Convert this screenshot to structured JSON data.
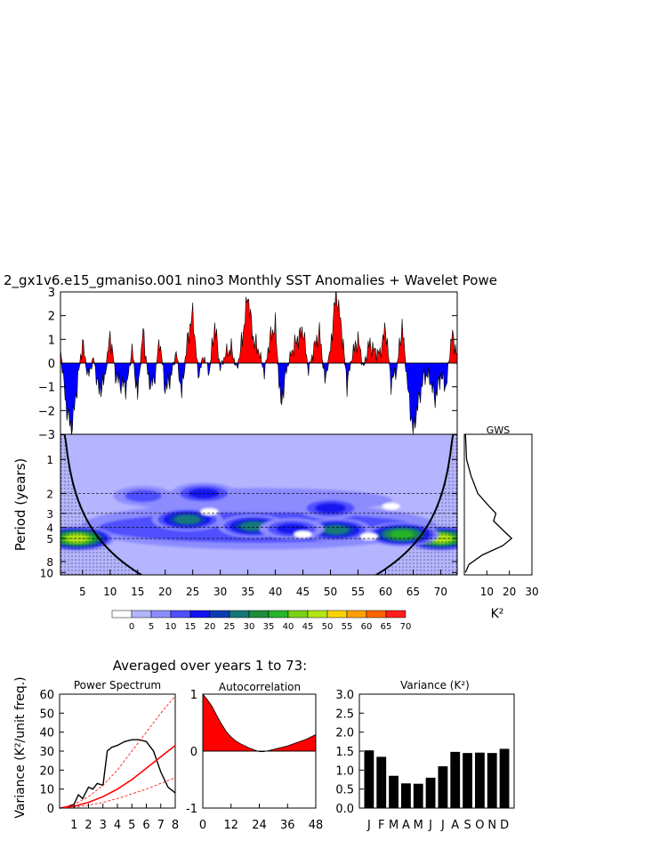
{
  "chart_data": [
    {
      "type": "area",
      "title": "2_gx1v6.e15_gmaniso.001 nino3 Monthly SST Anomalies + Wavelet Powe",
      "xlim": [
        1,
        73
      ],
      "ylim": [
        -3,
        3
      ],
      "yticks": [
        3,
        2,
        1,
        0,
        -1,
        -2,
        -3
      ],
      "ytick_labels": [
        "3",
        "2",
        "1",
        "0",
        "−1",
        "−2",
        "−3"
      ],
      "positive_color": "#ff0000",
      "negative_color": "#0000ff",
      "x": [
        1,
        2,
        3,
        4,
        5,
        6,
        7,
        8,
        9,
        10,
        11,
        12,
        13,
        14,
        15,
        16,
        17,
        18,
        19,
        20,
        21,
        22,
        23,
        24,
        25,
        26,
        27,
        28,
        29,
        30,
        31,
        32,
        33,
        34,
        35,
        36,
        37,
        38,
        39,
        40,
        41,
        42,
        43,
        44,
        45,
        46,
        47,
        48,
        49,
        50,
        51,
        52,
        53,
        54,
        55,
        56,
        57,
        58,
        59,
        60,
        61,
        62,
        63,
        64,
        65,
        66,
        67,
        68,
        69,
        70,
        71,
        72,
        73
      ],
      "values": [
        0.6,
        -1.8,
        -2.8,
        -1.0,
        0.9,
        -0.6,
        0.2,
        -1.2,
        -0.7,
        1.2,
        -0.5,
        -0.9,
        -1.0,
        0.6,
        -1.4,
        1.4,
        -0.8,
        -0.8,
        1.0,
        -1.1,
        -0.6,
        0.5,
        -1.3,
        0.9,
        2.1,
        -0.5,
        0.3,
        -0.4,
        1.6,
        -0.2,
        0.4,
        0.6,
        -0.3,
        1.0,
        2.9,
        1.0,
        0.5,
        -0.4,
        1.0,
        1.6,
        -1.8,
        -0.3,
        0.5,
        1.0,
        1.4,
        -0.3,
        0.6,
        1.3,
        -0.8,
        0.6,
        3.0,
        1.5,
        -0.9,
        0.4,
        1.0,
        -0.2,
        0.8,
        0.5,
        0.4,
        1.5,
        -0.8,
        -0.3,
        1.6,
        -1.0,
        -2.9,
        -1.6,
        -0.5,
        -0.6,
        -1.5,
        -0.5,
        -1.0,
        1.2,
        0.4
      ]
    },
    {
      "type": "heatmap",
      "ylabel": "Period (years)",
      "xticks": [
        5,
        10,
        15,
        20,
        25,
        30,
        35,
        40,
        45,
        50,
        55,
        60,
        65,
        70
      ],
      "yticks": [
        1,
        2,
        3,
        4,
        5,
        8,
        10
      ],
      "xlim": [
        1,
        73
      ],
      "ylim": [
        0.6,
        10.5
      ],
      "y_scale": "log",
      "dashed_periods": [
        2,
        3,
        4,
        5
      ],
      "colorbar_labels": [
        "0",
        "5",
        "10",
        "15",
        "20",
        "25",
        "30",
        "35",
        "40",
        "45",
        "50",
        "55",
        "60",
        "65",
        "70"
      ],
      "colorbar_colors": [
        "#ffffff",
        "#b4b4ff",
        "#8c8cff",
        "#5050ff",
        "#1414f0",
        "#0a3cb4",
        "#147878",
        "#1e8c3c",
        "#28b428",
        "#78d214",
        "#b4e614",
        "#fad200",
        "#ffa000",
        "#ff6400",
        "#ff1e1e"
      ],
      "power_blobs": [
        {
          "t": 4,
          "p": 5.0,
          "level": 10
        },
        {
          "t": 70,
          "p": 5.0,
          "level": 10
        },
        {
          "t": 24,
          "p": 3.4,
          "level": 6
        },
        {
          "t": 36,
          "p": 3.9,
          "level": 6
        },
        {
          "t": 51,
          "p": 4.2,
          "level": 6
        },
        {
          "t": 63,
          "p": 4.6,
          "level": 8
        },
        {
          "t": 27,
          "p": 2.0,
          "level": 4
        },
        {
          "t": 50,
          "p": 2.7,
          "level": 4
        },
        {
          "t": 16,
          "p": 2.1,
          "level": 3
        },
        {
          "t": 43,
          "p": 4.1,
          "level": 4
        }
      ]
    },
    {
      "type": "line",
      "title": "GWS",
      "xlabel": "K²",
      "xticks": [
        10,
        20,
        30
      ],
      "xlim": [
        0,
        30
      ],
      "curve": [
        {
          "period": 0.6,
          "value": 0.5
        },
        {
          "period": 1.0,
          "value": 1.0
        },
        {
          "period": 1.4,
          "value": 3.0
        },
        {
          "period": 2.0,
          "value": 6.0
        },
        {
          "period": 2.6,
          "value": 11.0
        },
        {
          "period": 3.0,
          "value": 14.0
        },
        {
          "period": 3.5,
          "value": 13.0
        },
        {
          "period": 4.2,
          "value": 17.0
        },
        {
          "period": 5.0,
          "value": 21.0
        },
        {
          "period": 5.8,
          "value": 17.0
        },
        {
          "period": 7.0,
          "value": 8.0
        },
        {
          "period": 8.5,
          "value": 2.0
        },
        {
          "period": 10.0,
          "value": 0.5
        }
      ]
    },
    {
      "type": "line",
      "suptitle": "Averaged over years 1 to 73:",
      "title": "Power Spectrum",
      "ylabel": "Variance (K²/unit freq.)",
      "xticks": [
        1,
        2,
        3,
        4,
        5,
        6,
        7,
        8
      ],
      "yticks": [
        0,
        10,
        20,
        30,
        40,
        50,
        60
      ],
      "xlim": [
        0,
        8
      ],
      "ylim": [
        0,
        60
      ],
      "series": [
        {
          "x": [
            0,
            0.5,
            1,
            1.3,
            1.6,
            2,
            2.3,
            2.6,
            3,
            3.3,
            3.6,
            4,
            4.5,
            5,
            5.5,
            6,
            6.5,
            7,
            7.5,
            8
          ],
          "values": [
            0,
            0.5,
            2,
            7,
            5,
            11,
            10,
            13,
            12,
            30,
            32,
            33,
            35,
            36,
            36,
            35,
            30,
            19,
            11,
            8
          ]
        },
        {
          "x": [
            0,
            1,
            2,
            3,
            4,
            5,
            6,
            7,
            8
          ],
          "values": [
            0,
            1,
            3,
            6,
            10,
            15,
            21,
            27,
            33
          ]
        },
        {
          "x": [
            0,
            1,
            2,
            3,
            4,
            5,
            6,
            7,
            8
          ],
          "values": [
            0,
            2,
            6,
            12,
            20,
            30,
            40,
            50,
            59
          ]
        },
        {
          "x": [
            0,
            1,
            2,
            3,
            4,
            5,
            6,
            7,
            8
          ],
          "values": [
            0,
            0.5,
            1.5,
            3,
            5,
            7.5,
            10,
            13,
            16
          ]
        }
      ]
    },
    {
      "type": "area",
      "title": "Autocorrelation",
      "xticks": [
        0,
        12,
        24,
        36,
        48
      ],
      "yticks": [
        -1,
        0,
        1
      ],
      "xlim": [
        0,
        48
      ],
      "ylim": [
        -1,
        1
      ],
      "x": [
        0,
        2,
        4,
        6,
        8,
        10,
        12,
        14,
        16,
        18,
        20,
        22,
        24,
        26,
        28,
        30,
        32,
        34,
        36,
        38,
        40,
        42,
        44,
        46,
        48
      ],
      "values": [
        1.0,
        0.9,
        0.78,
        0.62,
        0.47,
        0.34,
        0.25,
        0.18,
        0.13,
        0.09,
        0.05,
        0.02,
        -0.01,
        -0.01,
        0.01,
        0.03,
        0.05,
        0.07,
        0.09,
        0.12,
        0.15,
        0.18,
        0.21,
        0.25,
        0.29
      ]
    },
    {
      "type": "bar",
      "title": "Variance (K²)",
      "categories": [
        "J",
        "F",
        "M",
        "A",
        "M",
        "J",
        "J",
        "A",
        "S",
        "O",
        "N",
        "D"
      ],
      "values": [
        1.52,
        1.35,
        0.85,
        0.65,
        0.64,
        0.8,
        1.1,
        1.48,
        1.45,
        1.46,
        1.45,
        1.56
      ],
      "yticks": [
        "0.0",
        "0.5",
        "1.0",
        "1.5",
        "2.0",
        "2.5",
        "3.0"
      ],
      "ylim": [
        0,
        3
      ]
    }
  ]
}
